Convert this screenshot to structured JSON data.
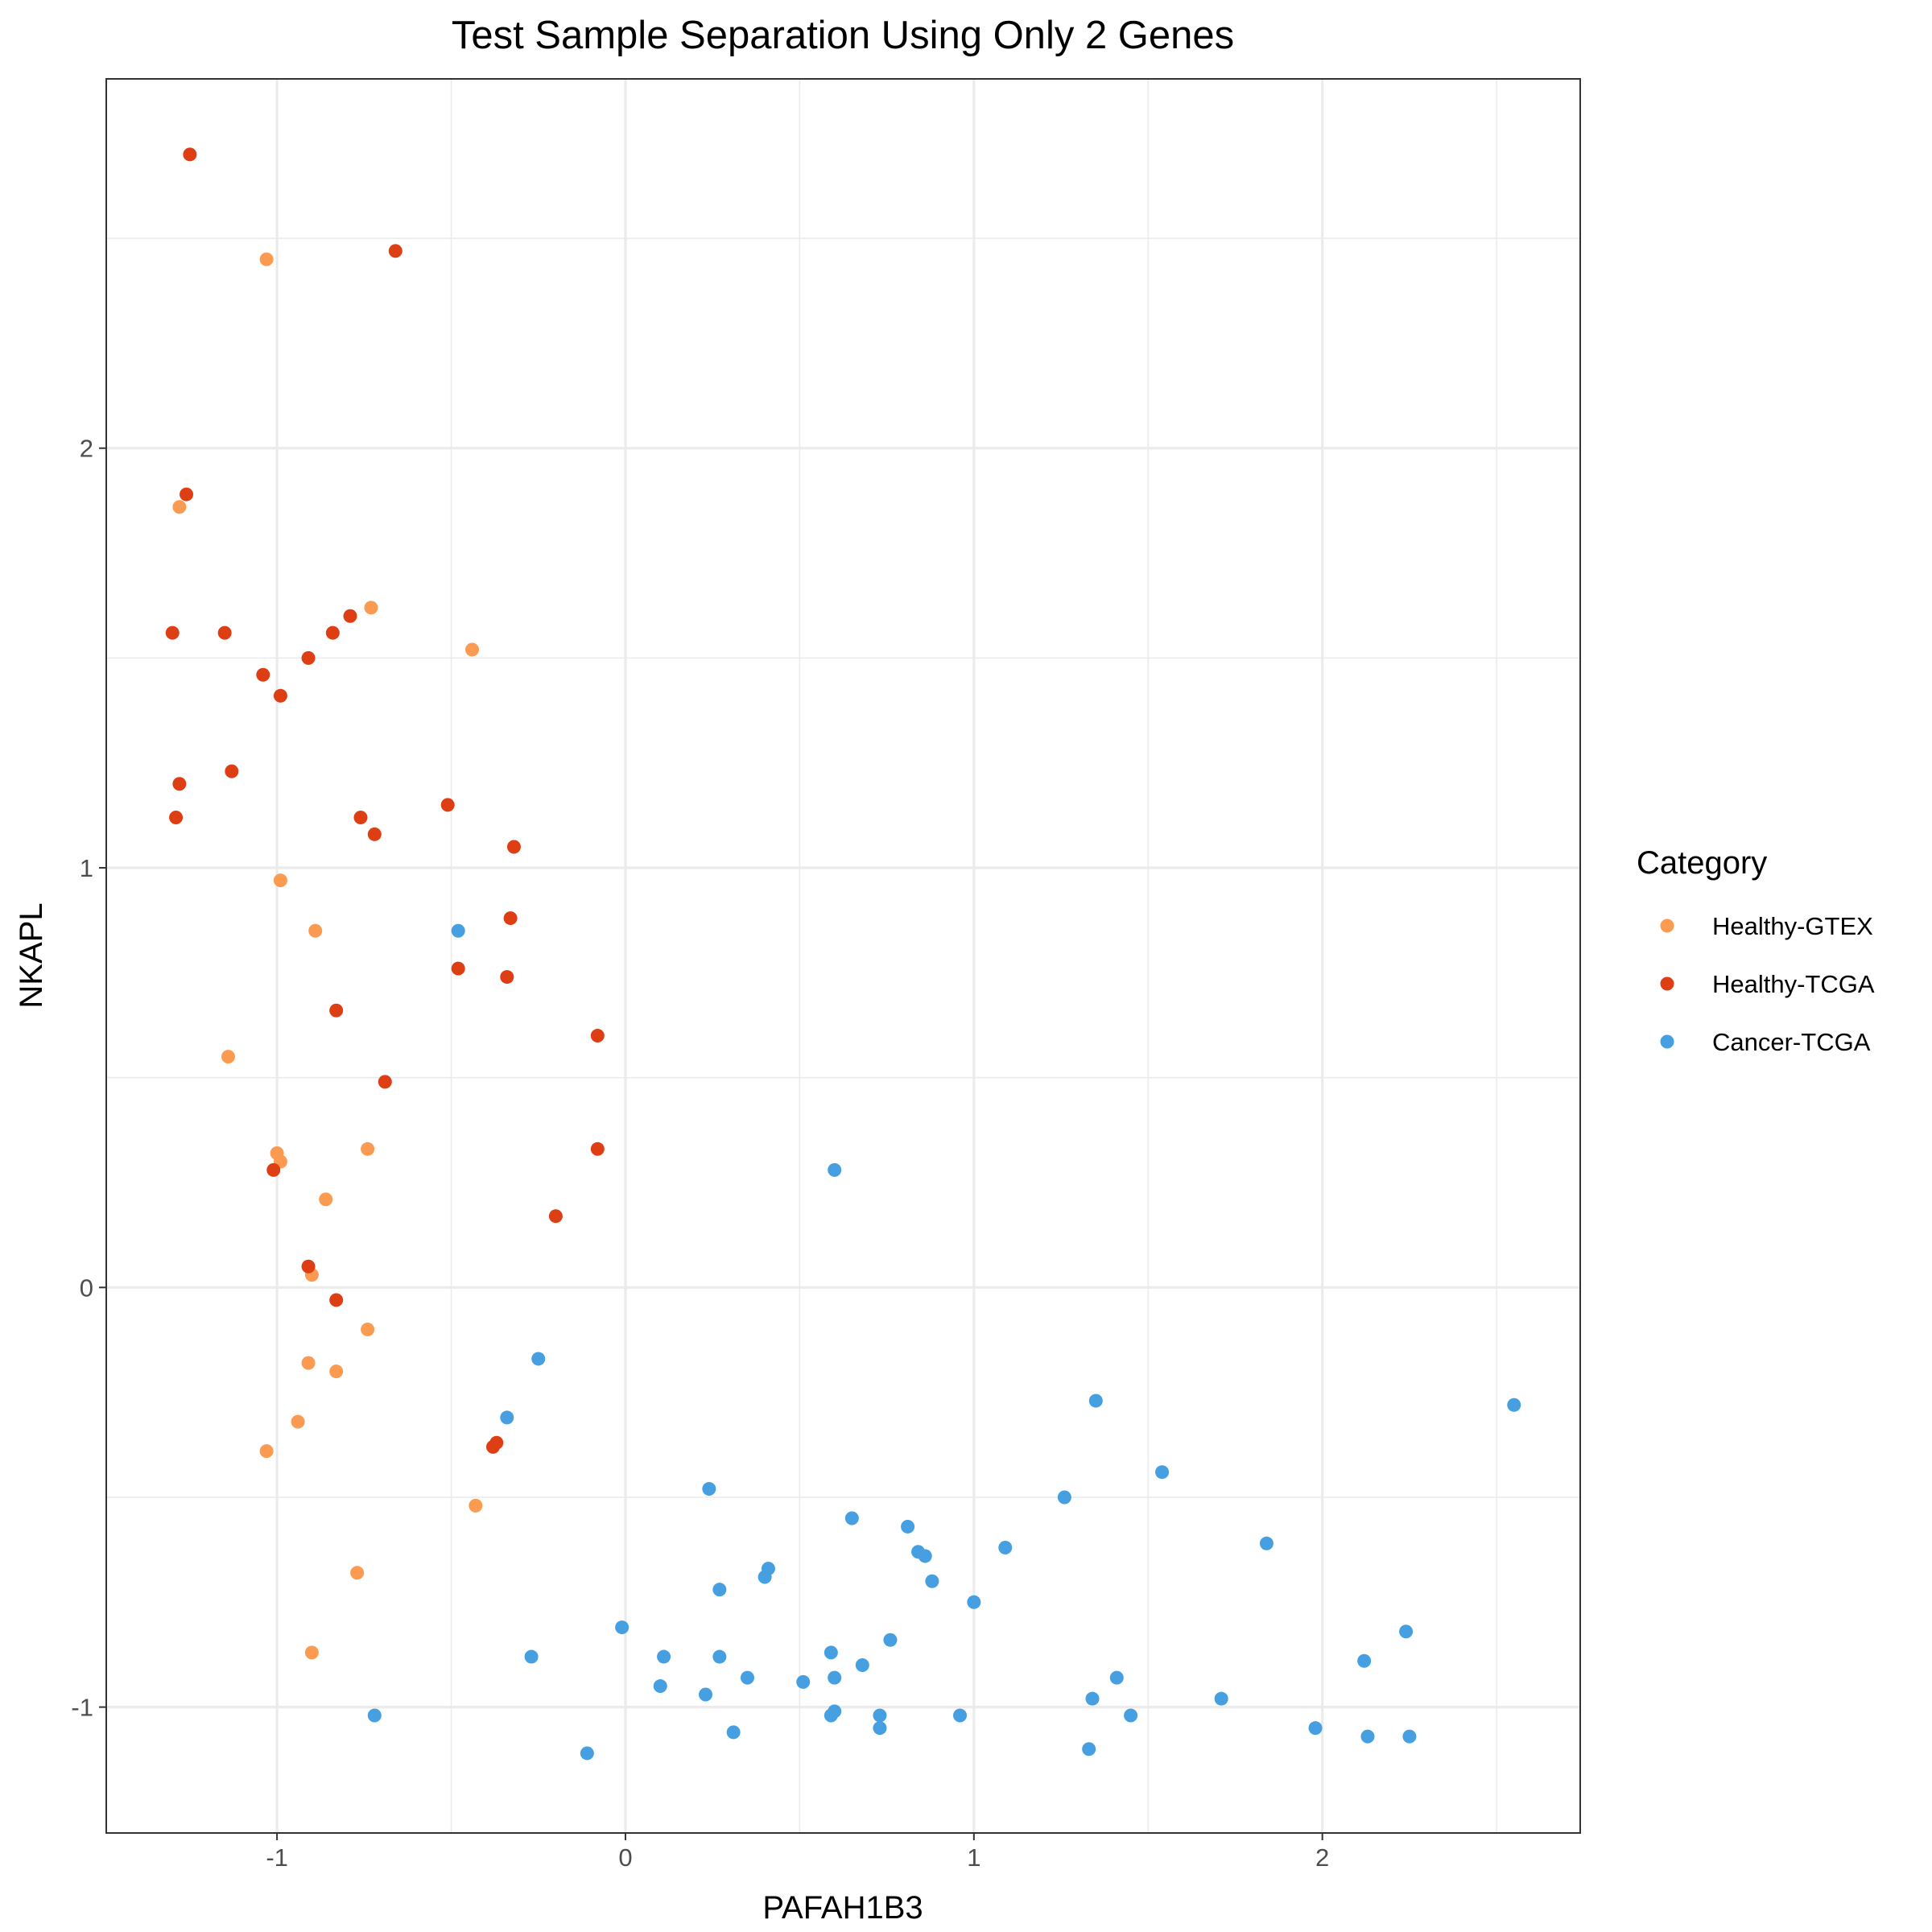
{
  "chart_data": {
    "type": "scatter",
    "title": "Test Sample Separation Using Only 2 Genes",
    "xlabel": "PAFAH1B3",
    "ylabel": "NKAPL",
    "xlim": [
      -1.49,
      2.74
    ],
    "ylim": [
      -1.3,
      2.88
    ],
    "x_ticks": [
      -1,
      0,
      1,
      2
    ],
    "x_tick_labels": [
      "-1",
      "0",
      "1",
      "2"
    ],
    "x_minor": [
      -0.5,
      0.5,
      1.5,
      2.5
    ],
    "y_ticks": [
      -1,
      0,
      1,
      2
    ],
    "y_tick_labels": [
      "-1",
      "0",
      "1",
      "2"
    ],
    "y_minor": [
      -0.5,
      0.5,
      1.5,
      2.5
    ],
    "grid": true,
    "legend": {
      "title": "Category",
      "position": "right"
    },
    "series": [
      {
        "name": "Healthy-GTEX",
        "color": "#FB9A51",
        "points": [
          [
            -1.03,
            2.45
          ],
          [
            -1.28,
            1.86
          ],
          [
            -0.73,
            1.62
          ],
          [
            -0.44,
            1.52
          ],
          [
            -0.99,
            0.97
          ],
          [
            -0.89,
            0.85
          ],
          [
            -1.14,
            0.55
          ],
          [
            -1.0,
            0.32
          ],
          [
            -0.99,
            0.3
          ],
          [
            -0.74,
            0.33
          ],
          [
            -0.86,
            0.21
          ],
          [
            -0.9,
            0.03
          ],
          [
            -0.74,
            -0.1
          ],
          [
            -0.91,
            -0.18
          ],
          [
            -0.83,
            -0.2
          ],
          [
            -0.94,
            -0.32
          ],
          [
            -1.03,
            -0.39
          ],
          [
            -0.43,
            -0.52
          ],
          [
            -0.77,
            -0.68
          ],
          [
            -0.9,
            -0.87
          ]
        ]
      },
      {
        "name": "Healthy-TCGA",
        "color": "#DD3E13",
        "points": [
          [
            -1.25,
            2.7
          ],
          [
            -0.66,
            2.47
          ],
          [
            -1.26,
            1.89
          ],
          [
            -1.3,
            1.56
          ],
          [
            -1.15,
            1.56
          ],
          [
            -0.84,
            1.56
          ],
          [
            -0.79,
            1.6
          ],
          [
            -0.91,
            1.5
          ],
          [
            -1.04,
            1.46
          ],
          [
            -0.99,
            1.41
          ],
          [
            -1.28,
            1.2
          ],
          [
            -1.13,
            1.23
          ],
          [
            -1.29,
            1.12
          ],
          [
            -0.76,
            1.12
          ],
          [
            -0.72,
            1.08
          ],
          [
            -0.51,
            1.15
          ],
          [
            -0.32,
            1.05
          ],
          [
            -0.33,
            0.88
          ],
          [
            -0.48,
            0.76
          ],
          [
            -0.34,
            0.74
          ],
          [
            -0.83,
            0.66
          ],
          [
            -0.69,
            0.49
          ],
          [
            -0.08,
            0.6
          ],
          [
            -0.08,
            0.33
          ],
          [
            -1.01,
            0.28
          ],
          [
            -0.2,
            0.17
          ],
          [
            -0.91,
            0.05
          ],
          [
            -0.83,
            -0.03
          ],
          [
            -0.37,
            -0.37
          ],
          [
            -0.38,
            -0.38
          ]
        ]
      },
      {
        "name": "Cancer-TCGA",
        "color": "#459FE0",
        "points": [
          [
            -0.48,
            0.85
          ],
          [
            0.6,
            0.28
          ],
          [
            -0.25,
            -0.17
          ],
          [
            -0.34,
            -0.31
          ],
          [
            1.35,
            -0.27
          ],
          [
            2.55,
            -0.28
          ],
          [
            1.54,
            -0.44
          ],
          [
            0.24,
            -0.48
          ],
          [
            1.26,
            -0.5
          ],
          [
            0.65,
            -0.55
          ],
          [
            0.81,
            -0.57
          ],
          [
            0.84,
            -0.63
          ],
          [
            0.86,
            -0.64
          ],
          [
            1.09,
            -0.62
          ],
          [
            1.84,
            -0.61
          ],
          [
            0.41,
            -0.67
          ],
          [
            0.4,
            -0.69
          ],
          [
            0.27,
            -0.72
          ],
          [
            0.88,
            -0.7
          ],
          [
            1.0,
            -0.75
          ],
          [
            -0.01,
            -0.81
          ],
          [
            2.24,
            -0.82
          ],
          [
            0.76,
            -0.84
          ],
          [
            0.59,
            -0.87
          ],
          [
            0.11,
            -0.88
          ],
          [
            0.27,
            -0.88
          ],
          [
            -0.27,
            -0.88
          ],
          [
            2.12,
            -0.89
          ],
          [
            0.68,
            -0.9
          ],
          [
            0.35,
            -0.93
          ],
          [
            0.6,
            -0.93
          ],
          [
            0.51,
            -0.94
          ],
          [
            1.41,
            -0.93
          ],
          [
            0.1,
            -0.95
          ],
          [
            0.23,
            -0.97
          ],
          [
            1.34,
            -0.98
          ],
          [
            1.71,
            -0.98
          ],
          [
            0.6,
            -1.01
          ],
          [
            0.59,
            -1.02
          ],
          [
            0.73,
            -1.02
          ],
          [
            0.96,
            -1.02
          ],
          [
            1.45,
            -1.02
          ],
          [
            -0.72,
            -1.02
          ],
          [
            0.73,
            -1.05
          ],
          [
            0.31,
            -1.06
          ],
          [
            1.98,
            -1.05
          ],
          [
            2.13,
            -1.07
          ],
          [
            2.25,
            -1.07
          ],
          [
            -0.11,
            -1.11
          ],
          [
            1.33,
            -1.1
          ]
        ]
      }
    ]
  }
}
